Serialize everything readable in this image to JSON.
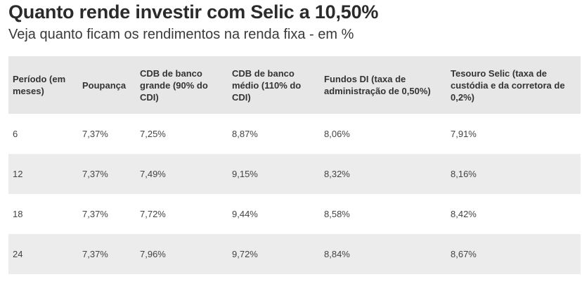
{
  "header": {
    "title": "Quanto rende investir com Selic a 10,50%",
    "subtitle": "Veja quanto ficam os rendimentos na renda fixa - em %"
  },
  "chart_data": {
    "type": "table",
    "title": "Quanto rende investir com Selic a 10,50%",
    "subtitle": "Veja quanto ficam os rendimentos na renda fixa - em %",
    "columns": [
      "Período (em meses)",
      "Poupança",
      "CDB de banco grande (90% do CDI)",
      "CDB de banco médio (110% do CDI)",
      "Fundos DI (taxa de administração de 0,50%)",
      "Tesouro Selic (taxa de custódia e da corretora de 0,2%)"
    ],
    "rows": [
      [
        "6",
        "7,37%",
        "7,25%",
        "8,87%",
        "8,06%",
        "7,91%"
      ],
      [
        "12",
        "7,37%",
        "7,49%",
        "9,15%",
        "8,32%",
        "8,16%"
      ],
      [
        "18",
        "7,37%",
        "7,72%",
        "9,44%",
        "8,58%",
        "8,42%"
      ],
      [
        "24",
        "7,37%",
        "7,96%",
        "9,72%",
        "8,84%",
        "8,67%"
      ]
    ]
  },
  "colors": {
    "header_bg": "#e7e7e7",
    "stripe_bg": "#ececec"
  }
}
